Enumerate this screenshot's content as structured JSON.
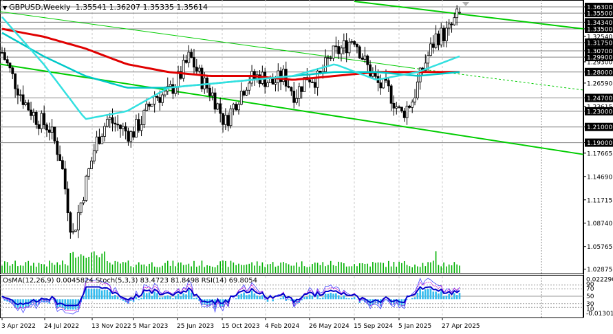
{
  "header": {
    "symbol": "GBPUSD,Weekly",
    "ohlc": "1.35541 1.36207 1.35335 1.35614",
    "arrow": "▼"
  },
  "indicator_header": "OsMA(12,26,9) 0.0045824  Stoch(5,3,3) 83.4723 81.8498  RSI(14) 69.8054",
  "colors": {
    "ma_slow": "#e00000",
    "ma_mid": "#00c8c8",
    "ma_fast": "#33e0e0",
    "channel": "#00cc00",
    "histogram": "#33bbee",
    "osma_line": "#0000cc",
    "stoch_line": "#4444ff",
    "stoch_signal": "#cc00cc",
    "level_line": "#9a9a9a",
    "highlight_label_bg": "#000000"
  },
  "chart_data": {
    "type": "candlestick",
    "symbol": "GBPUSD",
    "timeframe": "Weekly",
    "y_axis": {
      "ticks": [
        "1.36300",
        "1.35500",
        "1.34340",
        "1.33500",
        "1.32540",
        "1.31750",
        "1.30700",
        "1.29900",
        "1.29300",
        "1.28000",
        "1.26590",
        "1.24700",
        "1.23615",
        "1.23000",
        "1.21000",
        "1.19000",
        "1.17665",
        "1.14690",
        "1.11715",
        "1.08740",
        "1.05765",
        "1.02875"
      ],
      "highlighted_levels": [
        "1.36300",
        "1.35500",
        "1.34340",
        "1.33500",
        "1.31750",
        "1.30700",
        "1.29900",
        "1.28000",
        "1.24700",
        "1.23000",
        "1.21000",
        "1.19000"
      ],
      "ylim": [
        1.025,
        1.37
      ]
    },
    "x_axis": {
      "ticks": [
        "3 Apr 2022",
        "24 Jul 2022",
        "13 Nov 2022",
        "5 Mar 2023",
        "25 Jun 2023",
        "15 Oct 2023",
        "4 Feb 2024",
        "26 May 2024",
        "15 Sep 2024",
        "5 Jan 2025",
        "27 Apr 2025"
      ]
    },
    "close_path": [
      [
        "3 Apr 2022",
        1.305
      ],
      [
        "Apr 2022",
        1.27
      ],
      [
        "May 2022",
        1.24
      ],
      [
        "Jun 2022",
        1.22
      ],
      [
        "24 Jul 2022",
        1.21
      ],
      [
        "Aug 2022",
        1.17
      ],
      [
        "Sep 2022",
        1.07
      ],
      [
        "Oct 2022",
        1.13
      ],
      [
        "13 Nov 2022",
        1.19
      ],
      [
        "Dec 2022",
        1.22
      ],
      [
        "Jan 2023",
        1.21
      ],
      [
        "Feb 2023",
        1.2
      ],
      [
        "5 Mar 2023",
        1.22
      ],
      [
        "Apr 2023",
        1.25
      ],
      [
        "May 2023",
        1.25
      ],
      [
        "25 Jun 2023",
        1.27
      ],
      [
        "Jul 2023",
        1.3
      ],
      [
        "Aug 2023",
        1.27
      ],
      [
        "Sep 2023",
        1.25
      ],
      [
        "15 Oct 2023",
        1.215
      ],
      [
        "Nov 2023",
        1.245
      ],
      [
        "Dec 2023",
        1.27
      ],
      [
        "Jan 2024",
        1.275
      ],
      [
        "4 Feb 2024",
        1.265
      ],
      [
        "Mar 2024",
        1.275
      ],
      [
        "Apr 2024",
        1.25
      ],
      [
        "26 May 2024",
        1.275
      ],
      [
        "Jun 2024",
        1.27
      ],
      [
        "Jul 2024",
        1.3
      ],
      [
        "Aug 2024",
        1.31
      ],
      [
        "15 Sep 2024",
        1.325
      ],
      [
        "Oct 2024",
        1.29
      ],
      [
        "Nov 2024",
        1.265
      ],
      [
        "Dec 2024",
        1.255
      ],
      [
        "5 Jan 2025",
        1.225
      ],
      [
        "Feb 2025",
        1.245
      ],
      [
        "Mar 2025",
        1.29
      ],
      [
        "27 Apr 2025",
        1.325
      ],
      [
        "May 2025",
        1.33
      ],
      [
        "Jun 2025",
        1.356
      ]
    ],
    "last_candle": {
      "open": 1.35541,
      "high": 1.36207,
      "low": 1.35335,
      "close": 1.35614
    },
    "moving_averages": [
      {
        "role": "slow",
        "color": "#e00000",
        "values": [
          1.335,
          1.325,
          1.31,
          1.29,
          1.28,
          1.275,
          1.275,
          1.27,
          1.275,
          1.28,
          1.28,
          1.28
        ]
      },
      {
        "role": "mid",
        "color": "#00c8c8",
        "values": [
          1.33,
          1.3,
          1.275,
          1.26,
          1.26,
          1.265,
          1.27,
          1.275,
          1.28,
          1.28,
          1.275,
          1.28
        ]
      },
      {
        "role": "fast",
        "color": "#33e0e0",
        "values": [
          1.35,
          1.29,
          1.22,
          1.23,
          1.26,
          1.265,
          1.27,
          1.275,
          1.29,
          1.27,
          1.28,
          1.3
        ]
      }
    ],
    "channel_lines": [
      {
        "from": [
          "3 Apr 2022",
          1.29
        ],
        "to": [
          "Jun 2025+",
          1.175
        ]
      },
      {
        "from": [
          "26 May 2024",
          1.37
        ],
        "to": [
          "Jun 2025+",
          1.335
        ]
      },
      {
        "from": [
          "3 Apr 2022",
          1.355
        ],
        "to": [
          "Jun 2025",
          1.283
        ]
      }
    ]
  }
}
